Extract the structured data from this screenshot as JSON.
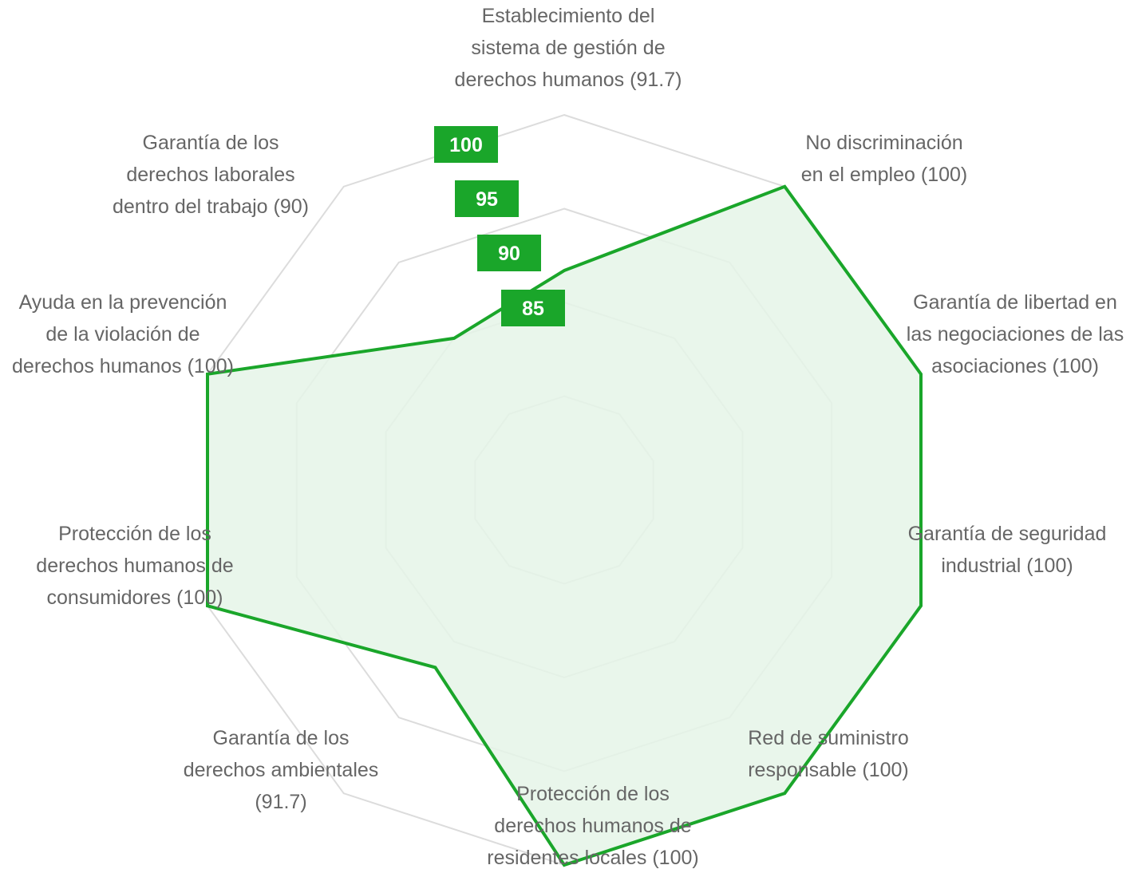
{
  "colors": {
    "series_line": "#1aa62a",
    "series_fill": "#e5f5e7",
    "grid": "#dcdcdc",
    "label_text": "#666666",
    "tick_bg": "#1aa62a",
    "tick_text": "#ffffff"
  },
  "chart_data": {
    "type": "radar",
    "title": "",
    "axes": [
      {
        "name": "Establecimiento del sistema de gestión de derechos humanos",
        "label_lines": [
          "Establecimiento del",
          "sistema de gestión de",
          "derechos humanos (91.7)"
        ]
      },
      {
        "name": "No discriminación en el empleo",
        "label_lines": [
          "No discriminación",
          "en el empleo (100)"
        ]
      },
      {
        "name": "Garantía de libertad en las negociaciones de las asociaciones",
        "label_lines": [
          "Garantía de libertad en",
          "las negociaciones de las",
          "asociaciones (100)"
        ]
      },
      {
        "name": "Garantía de seguridad industrial",
        "label_lines": [
          "Garantía de seguridad",
          "industrial (100)"
        ]
      },
      {
        "name": "Red de suministro responsable",
        "label_lines": [
          "Red de suministro",
          "responsable (100)"
        ]
      },
      {
        "name": "Protección de los derechos humanos de residentes locales",
        "label_lines": [
          "Protección de los",
          "derechos humanos de",
          "residentes locales (100)"
        ]
      },
      {
        "name": "Garantía de los derechos ambientales",
        "label_lines": [
          "Garantía de los",
          "derechos ambientales",
          "(91.7)"
        ]
      },
      {
        "name": "Protección de los derechos humanos de consumidores",
        "label_lines": [
          "Protección de los",
          "derechos humanos de",
          "consumidores (100)"
        ]
      },
      {
        "name": "Ayuda en la prevención de la violación de derechos humanos",
        "label_lines": [
          "Ayuda en la prevención",
          "de la violación de",
          "derechos humanos (100)"
        ]
      },
      {
        "name": "Garantía de los derechos laborales dentro del trabajo",
        "label_lines": [
          "Garantía de los",
          "derechos laborales",
          "dentro del trabajo (90)"
        ]
      }
    ],
    "series": [
      {
        "values": [
          91.7,
          100,
          100,
          100,
          100,
          100,
          91.7,
          100,
          100,
          90
        ]
      }
    ],
    "range": [
      80,
      100
    ],
    "ticks": [
      100,
      95,
      90,
      85
    ],
    "tick_labels": [
      "100",
      "95",
      "90",
      "85"
    ],
    "grid": true,
    "legend": "none"
  }
}
